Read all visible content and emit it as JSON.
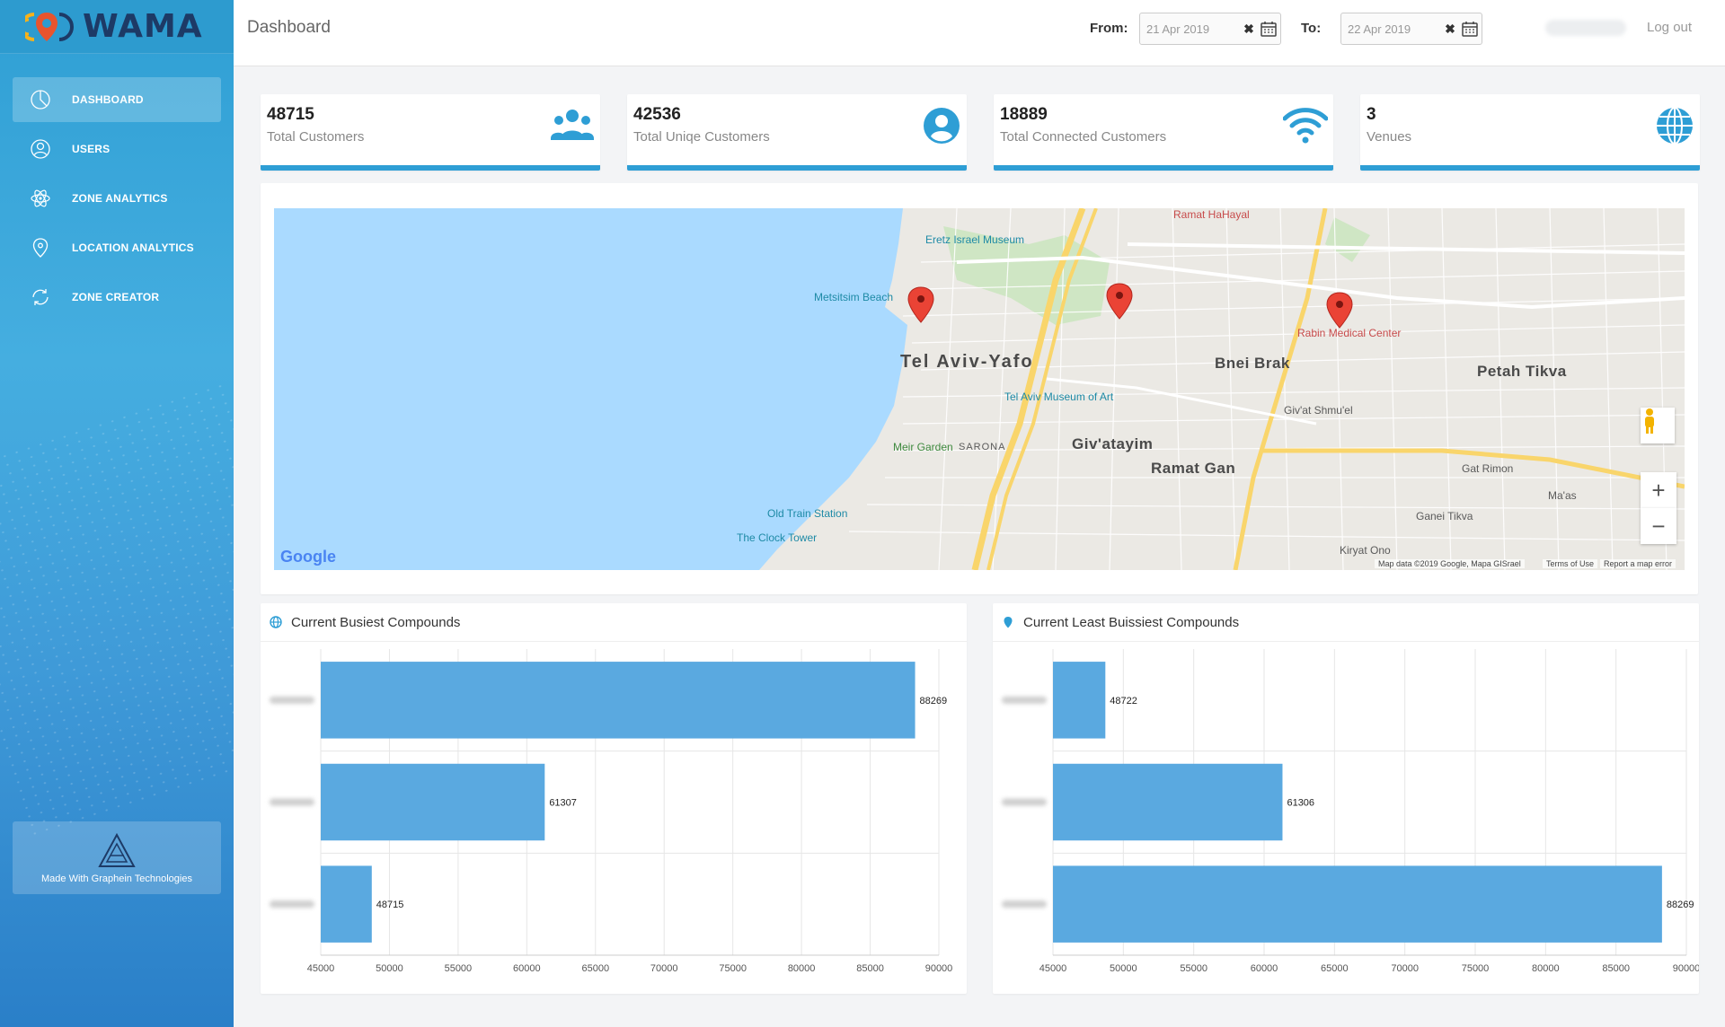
{
  "sidebar": {
    "logo_text": "WAMA",
    "items": [
      {
        "label": "DASHBOARD",
        "icon": "pie-chart-icon",
        "active": true
      },
      {
        "label": "USERS",
        "icon": "user-icon",
        "active": false
      },
      {
        "label": "ZONE ANALYTICS",
        "icon": "atom-icon",
        "active": false
      },
      {
        "label": "LOCATION ANALYTICS",
        "icon": "location-pin-icon",
        "active": false
      },
      {
        "label": "ZONE CREATOR",
        "icon": "refresh-icon",
        "active": false
      }
    ],
    "made_with": "Made With Graphein Technologies"
  },
  "header": {
    "title": "Dashboard",
    "from_label": "From:",
    "from_value": "21 Apr 2019",
    "to_label": "To:",
    "to_value": "22 Apr 2019",
    "logout": "Log out"
  },
  "stats": [
    {
      "value": "48715",
      "label": "Total Customers",
      "icon": "users-icon"
    },
    {
      "value": "42536",
      "label": "Total Uniqe Customers",
      "icon": "user-circle-icon"
    },
    {
      "value": "18889",
      "label": "Total Connected Customers",
      "icon": "wifi-icon"
    },
    {
      "value": "3",
      "label": "Venues",
      "icon": "globe-icon"
    }
  ],
  "map": {
    "labels": {
      "tel_aviv": "Tel Aviv-Yafo",
      "bnei_brak": "Bnei Brak",
      "petah_tikva": "Petah Tikva",
      "givatayim": "Giv'atayim",
      "ramat_gan": "Ramat Gan",
      "eretz_israel_museum": "Eretz Israel Museum",
      "metsitsim_beach": "Metsitsim Beach",
      "tel_aviv_museum": "Tel Aviv Museum of Art",
      "meir_garden": "Meir Garden",
      "sarona": "SARONA",
      "old_train_station": "Old Train Station",
      "clock_tower": "The Clock Tower",
      "rabin_medical": "Rabin Medical Center",
      "ramat_hahayal": "Ramat HaHayal",
      "givat_shmuel": "Giv'at Shmu'el",
      "gat_rimon": "Gat Rimon",
      "ganei_tikva": "Ganei Tikva",
      "kiryat_ono": "Kiryat Ono",
      "maas": "Ma'as"
    },
    "google": "Google",
    "attribution": "Map data ©2019 Google, Mapa GISrael",
    "terms": "Terms of Use",
    "report": "Report a map error",
    "zoom_in": "+",
    "zoom_out": "−"
  },
  "charts": {
    "busiest_title": "Current Busiest Compounds",
    "least_title": "Current Least Buissiest Compounds"
  },
  "chart_data": [
    {
      "type": "bar",
      "orientation": "horizontal",
      "title": "Current Busiest Compounds",
      "categories": [
        "",
        "",
        ""
      ],
      "values": [
        88269,
        61307,
        48715
      ],
      "xlim": [
        45000,
        90000
      ],
      "ticks": [
        45000,
        50000,
        55000,
        60000,
        65000,
        70000,
        75000,
        80000,
        85000,
        90000
      ],
      "color": "#5aa9e0",
      "grid": true
    },
    {
      "type": "bar",
      "orientation": "horizontal",
      "title": "Current Least Buissiest Compounds",
      "categories": [
        "",
        "",
        ""
      ],
      "values": [
        48722,
        61306,
        88269
      ],
      "xlim": [
        45000,
        90000
      ],
      "ticks": [
        45000,
        50000,
        55000,
        60000,
        65000,
        70000,
        75000,
        80000,
        85000,
        90000
      ],
      "color": "#5aa9e0",
      "grid": true
    }
  ],
  "colors": {
    "accent": "#2e9ed5",
    "bar": "#5aa9e0",
    "sidebar": "#3aa6dc"
  }
}
